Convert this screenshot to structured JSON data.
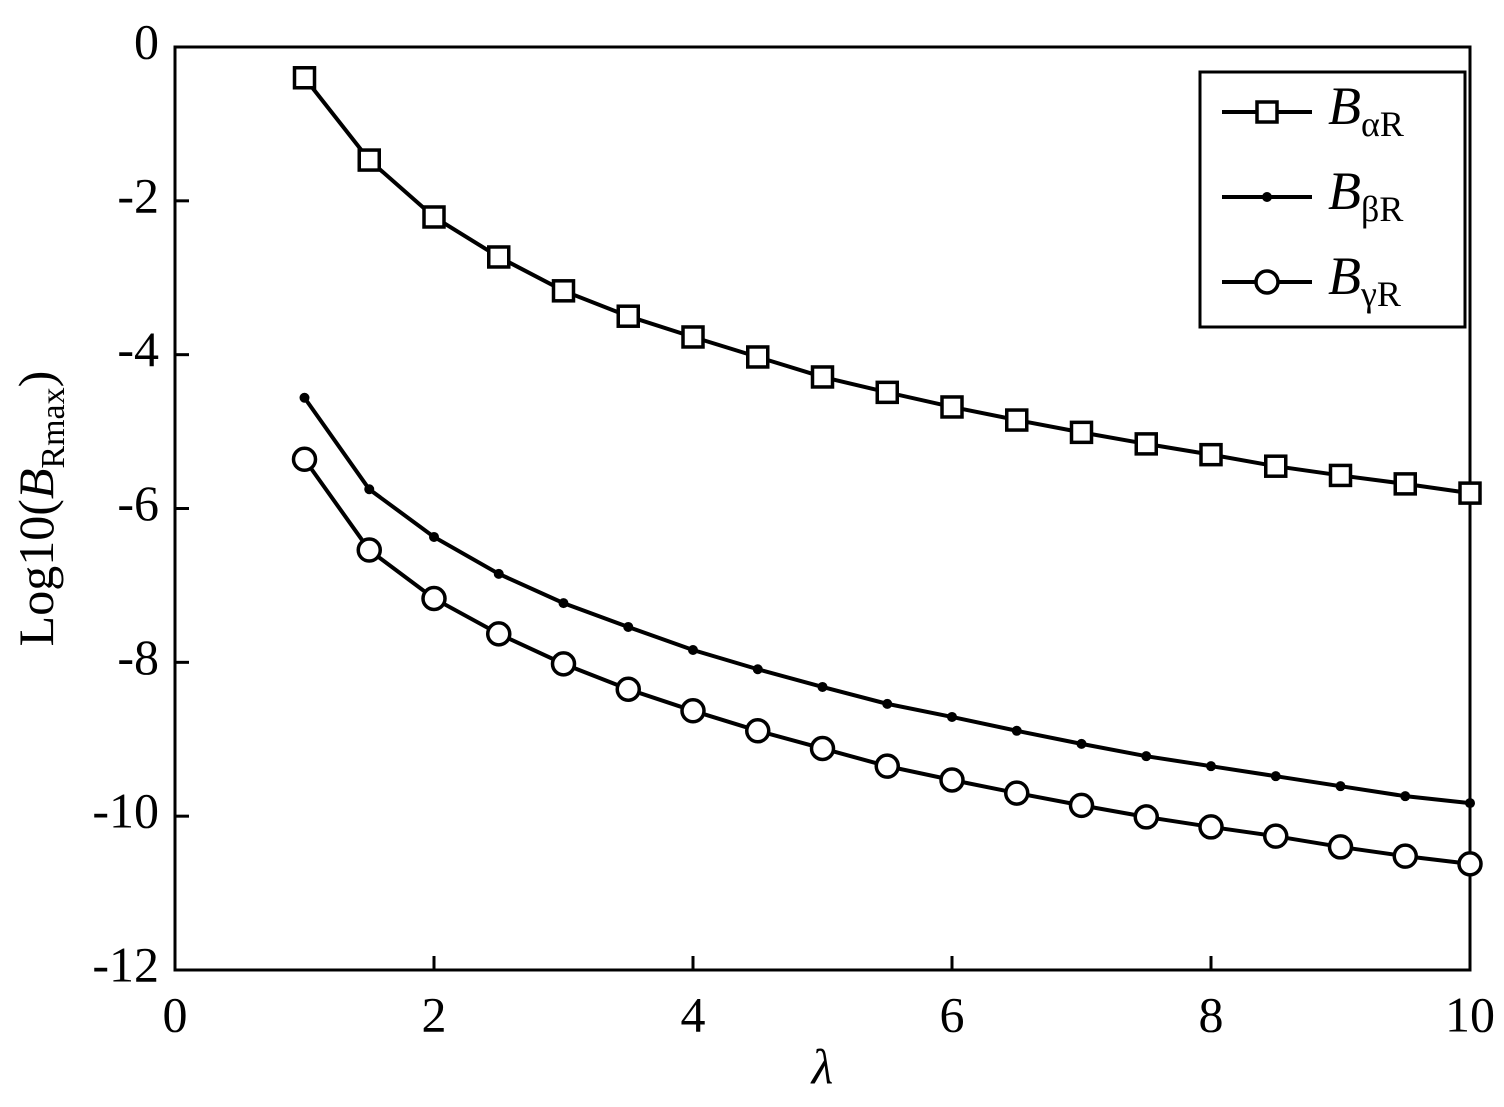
{
  "chart_data": {
    "type": "line",
    "x_label": "λ",
    "y_label": "Log10(BRmax)",
    "xlim": [
      0,
      10
    ],
    "xticks": [
      0,
      2,
      4,
      6,
      8,
      10
    ],
    "ylim": [
      -12,
      0
    ],
    "yticks": [
      0,
      -2,
      -4,
      -6,
      -8,
      -10,
      -12
    ],
    "x": [
      1,
      1.5,
      2,
      2.5,
      3,
      3.5,
      4,
      4.5,
      5,
      5.5,
      6,
      6.5,
      7,
      7.5,
      8,
      8.5,
      9,
      9.5,
      10
    ],
    "legend": "upper right",
    "series": [
      {
        "name": "BαR",
        "color": "#000000",
        "marker": "square",
        "values": [
          -0.4,
          -1.47,
          -2.21,
          -2.73,
          -3.17,
          -3.5,
          -3.77,
          -4.03,
          -4.29,
          -4.49,
          -4.68,
          -4.85,
          -5.01,
          -5.16,
          -5.3,
          -5.45,
          -5.57,
          -5.68,
          -5.8
        ]
      },
      {
        "name": "BβR",
        "color": "#000000",
        "marker": "dot",
        "values": [
          -4.56,
          -5.75,
          -6.37,
          -6.85,
          -7.23,
          -7.54,
          -7.84,
          -8.09,
          -8.32,
          -8.54,
          -8.71,
          -8.89,
          -9.06,
          -9.22,
          -9.35,
          -9.48,
          -9.61,
          -9.74,
          -9.83
        ]
      },
      {
        "name": "BγR",
        "color": "#000000",
        "marker": "circle",
        "values": [
          -5.36,
          -6.54,
          -7.17,
          -7.63,
          -8.02,
          -8.35,
          -8.63,
          -8.89,
          -9.12,
          -9.35,
          -9.53,
          -9.7,
          -9.86,
          -10.01,
          -10.14,
          -10.26,
          -10.4,
          -10.52,
          -10.62
        ]
      }
    ]
  }
}
